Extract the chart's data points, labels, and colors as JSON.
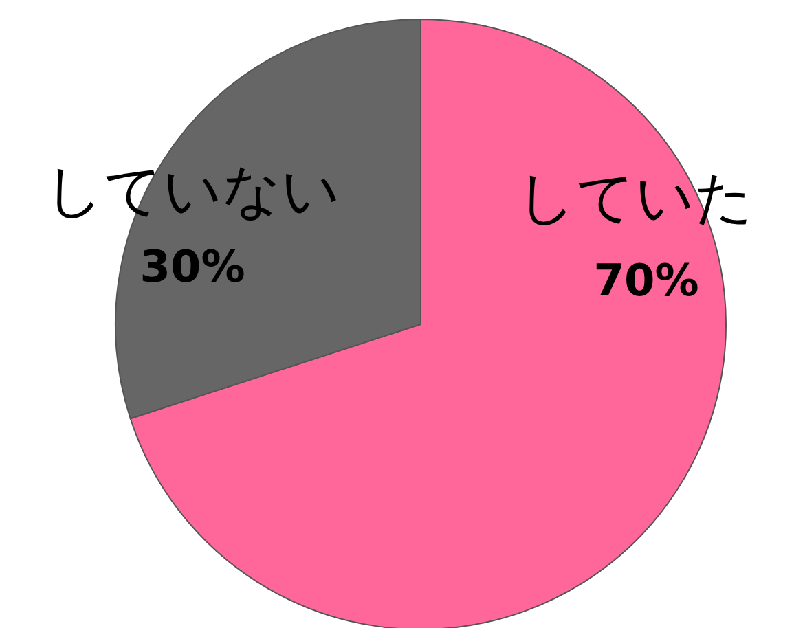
{
  "chart_data": {
    "type": "pie",
    "categories": [
      "していた",
      "していない"
    ],
    "values": [
      70,
      30
    ],
    "colors": [
      "#ff6699",
      "#666666"
    ],
    "value_labels": [
      "70%",
      "30%"
    ]
  }
}
